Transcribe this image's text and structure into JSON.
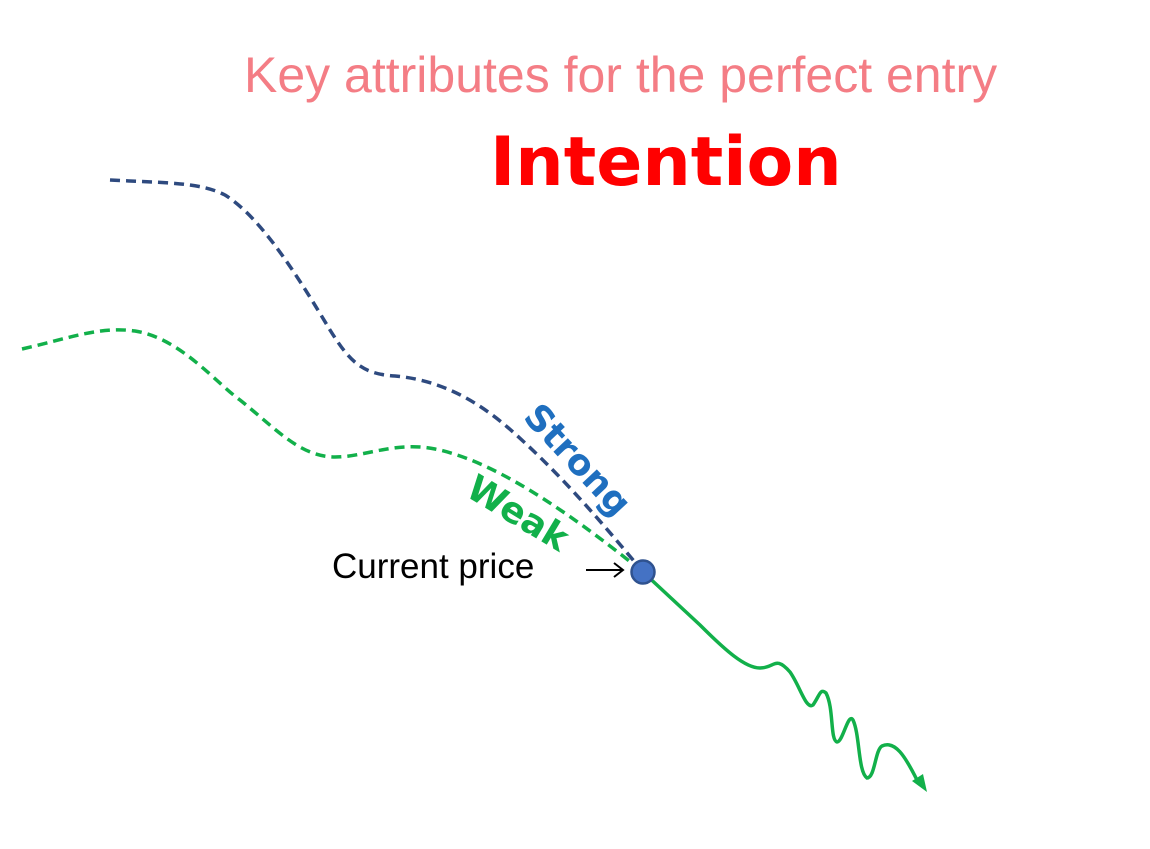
{
  "header": {
    "subtitle": "Key attributes for the perfect entry",
    "title": "Intention"
  },
  "labels": {
    "strong": "Strong",
    "weak": "Weak",
    "current_price": "Current price",
    "arrow_glyph": "→"
  },
  "colors": {
    "subtitle": "#f47d85",
    "title": "#ff0000",
    "strong_line": "#2e4a7f",
    "strong_text": "#1f6fbf",
    "weak_line": "#12b04a",
    "future_line": "#12b04a",
    "point_fill": "#4472c4",
    "point_stroke": "#2f528f"
  },
  "icons": {
    "current_point": "blue-circle-icon",
    "future_arrowhead": "arrowhead-icon"
  }
}
